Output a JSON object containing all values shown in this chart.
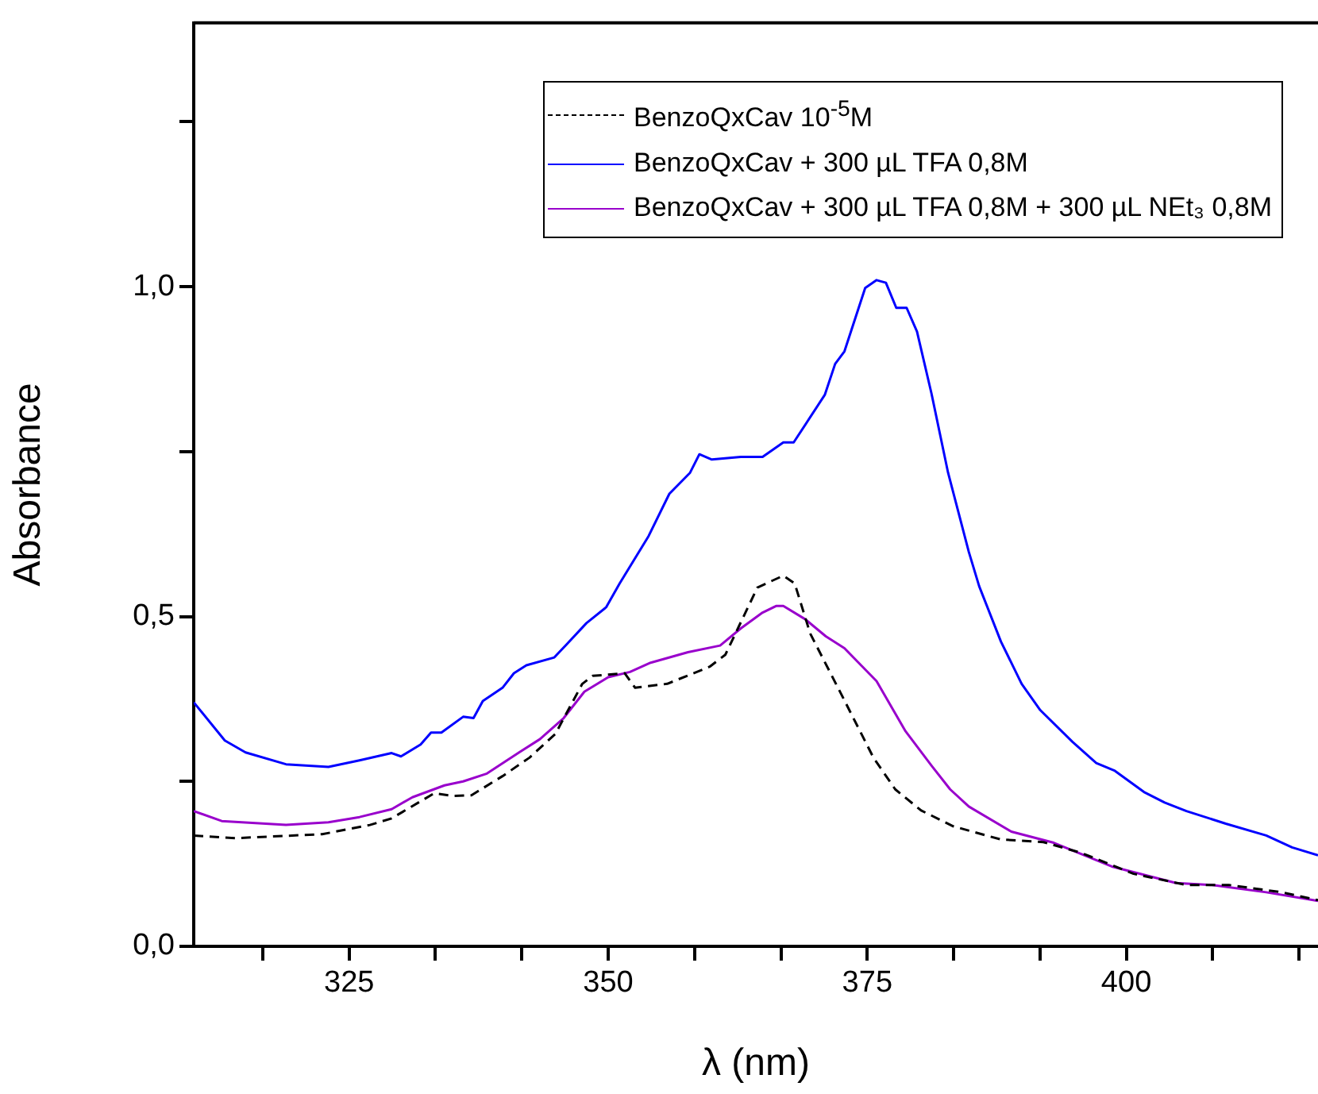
{
  "chart_data": {
    "type": "line",
    "xlabel": "λ (nm)",
    "ylabel": "Absorbance",
    "xlim": [
      310,
      418.5
    ],
    "ylim": [
      0,
      1.4
    ],
    "xticks": [
      {
        "value": 316.67,
        "label": null
      },
      325,
      {
        "value": 333.33,
        "label": null
      },
      {
        "value": 341.67,
        "label": null
      },
      350,
      {
        "value": 358.33,
        "label": null
      },
      {
        "value": 366.67,
        "label": null
      },
      375,
      {
        "value": 383.33,
        "label": null
      },
      {
        "value": 391.67,
        "label": null
      },
      400,
      {
        "value": 408.33,
        "label": null
      },
      {
        "value": 416.67,
        "label": null
      }
    ],
    "yticks": [
      {
        "value": 0,
        "label": "0,0"
      },
      {
        "value": 0.25,
        "label": null
      },
      {
        "value": 0.5,
        "label": "0,5"
      },
      {
        "value": 0.75,
        "label": null
      },
      {
        "value": 1,
        "label": "1,0"
      },
      {
        "value": 1.25,
        "label": null
      }
    ],
    "grid": false,
    "legend": "top right",
    "marker": "none",
    "series": [
      {
        "name": "BenzoQxCav 10$^{-5}$M",
        "color": "#000000",
        "line_style": "dashed",
        "x": [
          310,
          314,
          322.4,
          327,
          329.1,
          333.2,
          335,
          336.8,
          339.8,
          342.4,
          344.9,
          347.5,
          348.5,
          351.6,
          352.6,
          355.7,
          359.8,
          361.3,
          364.4,
          366.9,
          368,
          369.5,
          372.5,
          375.6,
          377.7,
          380.2,
          383.3,
          387.9,
          392,
          395.6,
          400.7,
          405.8,
          409.9,
          415,
          418.5
        ],
        "values": [
          0.168,
          0.164,
          0.17,
          0.184,
          0.194,
          0.232,
          0.228,
          0.229,
          0.258,
          0.286,
          0.322,
          0.398,
          0.41,
          0.414,
          0.392,
          0.398,
          0.424,
          0.442,
          0.544,
          0.562,
          0.55,
          0.474,
          0.382,
          0.286,
          0.238,
          0.206,
          0.182,
          0.162,
          0.158,
          0.142,
          0.11,
          0.093,
          0.093,
          0.082,
          0.07
        ]
      },
      {
        "name": "BenzoQxCav + 300 µL TFA 0,8M",
        "color": "#0000ff",
        "line_style": "solid",
        "x": [
          310,
          313,
          315,
          318.9,
          323,
          326,
          329.1,
          330,
          331.9,
          332.9,
          333.9,
          336,
          337,
          337.9,
          339.8,
          340.9,
          342.1,
          344.8,
          346,
          347.9,
          349.8,
          351.1,
          353.9,
          355.9,
          357.9,
          358.8,
          360,
          362.8,
          364.9,
          366.9,
          367.9,
          370.9,
          371.9,
          372.8,
          374.8,
          375.9,
          376.8,
          377.8,
          378.8,
          379.8,
          381.2,
          382.8,
          384.8,
          385.8,
          387.9,
          389.9,
          391.7,
          394.8,
          397.1,
          398.9,
          401.7,
          403.7,
          405.8,
          409.6,
          413.5,
          416,
          418.5
        ],
        "values": [
          0.37,
          0.312,
          0.294,
          0.276,
          0.272,
          0.282,
          0.293,
          0.288,
          0.306,
          0.324,
          0.324,
          0.348,
          0.346,
          0.372,
          0.392,
          0.414,
          0.426,
          0.438,
          0.458,
          0.49,
          0.514,
          0.55,
          0.622,
          0.686,
          0.718,
          0.746,
          0.738,
          0.742,
          0.742,
          0.764,
          0.764,
          0.836,
          0.883,
          0.902,
          0.998,
          1.01,
          1.006,
          0.968,
          0.968,
          0.932,
          0.838,
          0.718,
          0.598,
          0.546,
          0.462,
          0.398,
          0.358,
          0.31,
          0.278,
          0.266,
          0.234,
          0.218,
          0.205,
          0.186,
          0.168,
          0.15,
          0.138
        ]
      },
      {
        "name": "BenzoQxCav + 300 µL TFA 0,8M + 300 µL NEt₃ 0,8M",
        "color": "#9900cc",
        "line_style": "solid",
        "x": [
          310,
          312.7,
          318.9,
          323,
          326,
          329.1,
          331.1,
          334.2,
          336,
          338.3,
          341.4,
          343.4,
          345.7,
          347.7,
          350,
          352.1,
          354.1,
          357.7,
          360.8,
          362.8,
          364.9,
          366.2,
          366.9,
          369,
          371,
          372.8,
          375.9,
          378.7,
          381.2,
          383,
          384.8,
          388.9,
          393,
          398.6,
          404.8,
          408.3,
          413.5,
          418.5
        ],
        "values": [
          0.205,
          0.19,
          0.184,
          0.188,
          0.196,
          0.208,
          0.226,
          0.244,
          0.25,
          0.262,
          0.294,
          0.314,
          0.346,
          0.386,
          0.408,
          0.416,
          0.43,
          0.446,
          0.456,
          0.482,
          0.506,
          0.516,
          0.516,
          0.496,
          0.47,
          0.452,
          0.402,
          0.326,
          0.274,
          0.238,
          0.212,
          0.174,
          0.157,
          0.121,
          0.096,
          0.093,
          0.082,
          0.069
        ]
      }
    ]
  }
}
